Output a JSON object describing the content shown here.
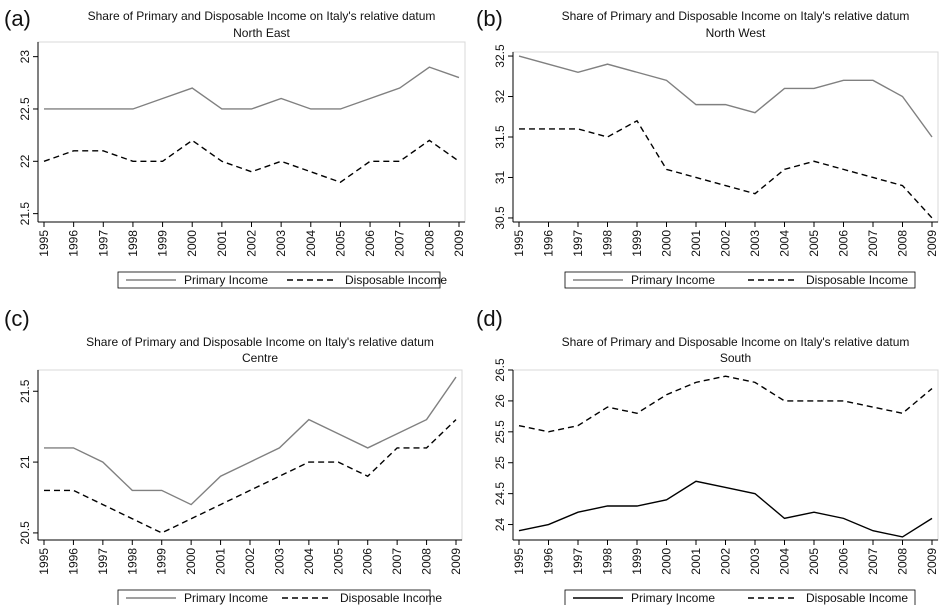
{
  "chart_data": [
    {
      "type": "line",
      "label": "(a)",
      "title": "Share of Primary and Disposable Income on Italy's relative datum",
      "subtitle": "North East",
      "categories": [
        "1995",
        "1996",
        "1997",
        "1998",
        "1999",
        "2000",
        "2001",
        "2002",
        "2003",
        "2004",
        "2005",
        "2006",
        "2007",
        "2008",
        "2009"
      ],
      "series": [
        {
          "name": "Primary Income",
          "color": "#808080",
          "line_style": "solid",
          "values": [
            22.5,
            22.5,
            22.5,
            22.5,
            22.6,
            22.7,
            22.5,
            22.5,
            22.6,
            22.5,
            22.5,
            22.6,
            22.7,
            22.9,
            22.8
          ]
        },
        {
          "name": "Disposable Income",
          "color": "#000000",
          "line_style": "dashed",
          "values": [
            22.0,
            22.1,
            22.1,
            22.0,
            22.0,
            22.2,
            22.0,
            21.9,
            22.0,
            21.9,
            21.8,
            22.0,
            22.0,
            22.2,
            22.0
          ]
        }
      ],
      "ylim": [
        21.42,
        23.14
      ],
      "yticks": [
        21.5,
        22,
        22.5,
        23
      ]
    },
    {
      "type": "line",
      "label": "(b)",
      "title": "Share of Primary and Disposable Income on Italy's relative datum",
      "subtitle": "North West",
      "categories": [
        "1995",
        "1996",
        "1997",
        "1998",
        "1999",
        "2000",
        "2001",
        "2002",
        "2003",
        "2004",
        "2005",
        "2006",
        "2007",
        "2008",
        "2009"
      ],
      "series": [
        {
          "name": "Primary Income",
          "color": "#808080",
          "line_style": "solid",
          "values": [
            32.5,
            32.4,
            32.3,
            32.4,
            32.3,
            32.2,
            31.9,
            31.9,
            31.8,
            32.1,
            32.1,
            32.2,
            32.2,
            32.0,
            31.5
          ]
        },
        {
          "name": "Disposable Income",
          "color": "#000000",
          "line_style": "dashed",
          "values": [
            31.6,
            31.6,
            31.6,
            31.5,
            31.7,
            31.1,
            31.0,
            30.9,
            30.8,
            31.1,
            31.2,
            31.1,
            31.0,
            30.9,
            30.5
          ]
        }
      ],
      "ylim": [
        30.45,
        32.55
      ],
      "yticks": [
        30.5,
        31,
        31.5,
        32,
        32.5
      ]
    },
    {
      "type": "line",
      "label": "(c)",
      "title": "Share of Primary and Disposable Income on Italy's relative datum",
      "subtitle": "Centre",
      "categories": [
        "1995",
        "1996",
        "1997",
        "1998",
        "1999",
        "2000",
        "2001",
        "2002",
        "2003",
        "2004",
        "2005",
        "2006",
        "2007",
        "2008",
        "2009"
      ],
      "series": [
        {
          "name": "Primary Income",
          "color": "#808080",
          "line_style": "solid",
          "values": [
            21.1,
            21.1,
            21.0,
            20.8,
            20.8,
            20.7,
            20.9,
            21.0,
            21.1,
            21.3,
            21.2,
            21.1,
            21.2,
            21.3,
            21.6
          ]
        },
        {
          "name": "Disposable Income",
          "color": "#000000",
          "line_style": "dashed",
          "values": [
            20.8,
            20.8,
            20.7,
            20.6,
            20.5,
            20.6,
            20.7,
            20.8,
            20.9,
            21.0,
            21.0,
            20.9,
            21.1,
            21.1,
            21.3
          ]
        }
      ],
      "ylim": [
        20.45,
        21.65
      ],
      "yticks": [
        20.5,
        21,
        21.5
      ]
    },
    {
      "type": "line",
      "label": "(d)",
      "title": "Share of Primary and Disposable Income on Italy's relative datum",
      "subtitle": "South",
      "categories": [
        "1995",
        "1996",
        "1997",
        "1998",
        "1999",
        "2000",
        "2001",
        "2002",
        "2003",
        "2004",
        "2005",
        "2006",
        "2007",
        "2008",
        "2009"
      ],
      "series": [
        {
          "name": "Primary Income",
          "color": "#000000",
          "line_style": "solid",
          "values": [
            23.9,
            24.0,
            24.2,
            24.3,
            24.3,
            24.4,
            24.7,
            24.6,
            24.5,
            24.1,
            24.2,
            24.1,
            23.9,
            23.8,
            24.1
          ]
        },
        {
          "name": "Disposable Income",
          "color": "#000000",
          "line_style": "dashed",
          "values": [
            25.6,
            25.5,
            25.6,
            25.9,
            25.8,
            26.1,
            26.3,
            26.4,
            26.3,
            26.0,
            26.0,
            26.0,
            25.9,
            25.8,
            26.2
          ]
        }
      ],
      "ylim": [
        23.75,
        26.5
      ],
      "yticks": [
        24,
        24.5,
        25,
        25.5,
        26,
        26.5
      ]
    }
  ]
}
